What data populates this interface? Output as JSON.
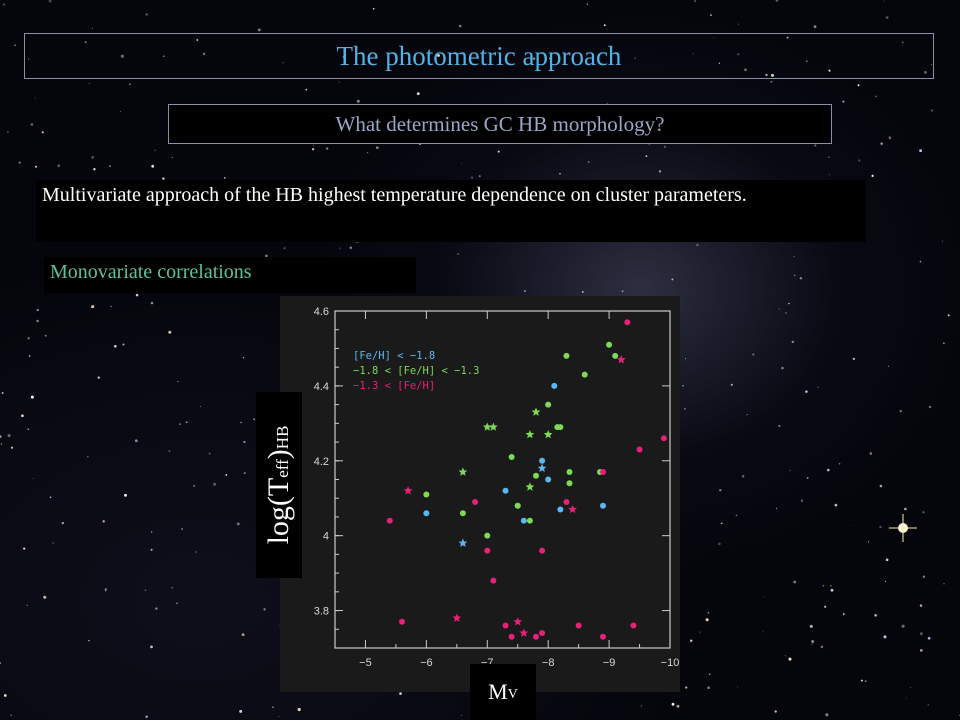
{
  "slide": {
    "title": "The photometric approach",
    "subtitle": "What determines GC HB morphology?",
    "body": "Multivariate approach of the HB highest temperature dependence on cluster parameters.",
    "section": "Monovariate correlations"
  },
  "axis_labels": {
    "y_main": "log(T",
    "y_sub": "eff",
    "y_close": ")",
    "y_sub2": "HB",
    "x_main": "M",
    "x_sub": "V"
  },
  "colors": {
    "low": "#5ab8f0",
    "mid": "#7ed957",
    "high": "#e8207a"
  },
  "chart_data": {
    "type": "scatter",
    "xlim": [
      -4.5,
      -10
    ],
    "ylim": [
      3.7,
      4.6
    ],
    "x_ticks": [
      -5,
      -6,
      -7,
      -8,
      -9,
      -10
    ],
    "y_ticks": [
      3.8,
      4,
      4.2,
      4.4,
      4.6
    ],
    "x_tick_labels": [
      "−5",
      "−6",
      "−7",
      "−8",
      "−9",
      "−10"
    ],
    "y_tick_labels": [
      "3.8",
      "4",
      "4.2",
      "4.4",
      "4.6"
    ],
    "legend": [
      {
        "label": "[Fe/H] < −1.8",
        "color": "#5ab8f0"
      },
      {
        "label": "−1.8 < [Fe/H] < −1.3",
        "color": "#7ed957"
      },
      {
        "label": "−1.3 < [Fe/H]",
        "color": "#e8207a"
      }
    ],
    "legend_position": "top-left",
    "series": [
      {
        "name": "[Fe/H] < −1.8",
        "color": "#5ab8f0",
        "points": [
          {
            "x": -6.0,
            "y": 4.06,
            "m": "o"
          },
          {
            "x": -6.6,
            "y": 3.98,
            "m": "*"
          },
          {
            "x": -7.3,
            "y": 4.12,
            "m": "o"
          },
          {
            "x": -7.6,
            "y": 4.04,
            "m": "o"
          },
          {
            "x": -7.5,
            "y": 4.08,
            "m": "o"
          },
          {
            "x": -7.9,
            "y": 4.2,
            "m": "o"
          },
          {
            "x": -7.9,
            "y": 4.18,
            "m": "*"
          },
          {
            "x": -8.0,
            "y": 4.15,
            "m": "o"
          },
          {
            "x": -8.2,
            "y": 4.07,
            "m": "o"
          },
          {
            "x": -8.9,
            "y": 4.08,
            "m": "o"
          },
          {
            "x": -8.1,
            "y": 4.4,
            "m": "o"
          }
        ]
      },
      {
        "name": "−1.8 < [Fe/H] < −1.3",
        "color": "#7ed957",
        "points": [
          {
            "x": -6.0,
            "y": 4.11,
            "m": "o"
          },
          {
            "x": -6.6,
            "y": 4.06,
            "m": "o"
          },
          {
            "x": -6.6,
            "y": 4.17,
            "m": "*"
          },
          {
            "x": -7.0,
            "y": 4.29,
            "m": "*"
          },
          {
            "x": -7.1,
            "y": 4.29,
            "m": "*"
          },
          {
            "x": -7.0,
            "y": 4.0,
            "m": "o"
          },
          {
            "x": -7.4,
            "y": 4.21,
            "m": "o"
          },
          {
            "x": -7.5,
            "y": 4.08,
            "m": "o"
          },
          {
            "x": -7.7,
            "y": 4.27,
            "m": "*"
          },
          {
            "x": -7.8,
            "y": 4.33,
            "m": "*"
          },
          {
            "x": -7.7,
            "y": 4.04,
            "m": "o"
          },
          {
            "x": -7.7,
            "y": 4.13,
            "m": "*"
          },
          {
            "x": -7.8,
            "y": 4.16,
            "m": "o"
          },
          {
            "x": -8.0,
            "y": 4.35,
            "m": "o"
          },
          {
            "x": -8.0,
            "y": 4.27,
            "m": "*"
          },
          {
            "x": -8.15,
            "y": 4.29,
            "m": "o"
          },
          {
            "x": -8.2,
            "y": 4.29,
            "m": "o"
          },
          {
            "x": -8.3,
            "y": 4.48,
            "m": "o"
          },
          {
            "x": -8.35,
            "y": 4.17,
            "m": "o"
          },
          {
            "x": -8.35,
            "y": 4.14,
            "m": "o"
          },
          {
            "x": -8.6,
            "y": 4.43,
            "m": "o"
          },
          {
            "x": -8.85,
            "y": 4.17,
            "m": "o"
          },
          {
            "x": -9.0,
            "y": 4.51,
            "m": "o"
          },
          {
            "x": -9.1,
            "y": 4.48,
            "m": "o"
          }
        ]
      },
      {
        "name": "−1.3 < [Fe/H]",
        "color": "#e8207a",
        "points": [
          {
            "x": -5.4,
            "y": 4.04,
            "m": "o"
          },
          {
            "x": -5.7,
            "y": 4.12,
            "m": "*"
          },
          {
            "x": -5.6,
            "y": 3.77,
            "m": "o"
          },
          {
            "x": -6.5,
            "y": 3.78,
            "m": "*"
          },
          {
            "x": -6.8,
            "y": 4.09,
            "m": "o"
          },
          {
            "x": -7.0,
            "y": 3.96,
            "m": "o"
          },
          {
            "x": -7.1,
            "y": 3.88,
            "m": "o"
          },
          {
            "x": -7.3,
            "y": 3.76,
            "m": "o"
          },
          {
            "x": -7.4,
            "y": 3.73,
            "m": "o"
          },
          {
            "x": -7.5,
            "y": 3.77,
            "m": "*"
          },
          {
            "x": -7.6,
            "y": 3.74,
            "m": "*"
          },
          {
            "x": -7.8,
            "y": 3.73,
            "m": "o"
          },
          {
            "x": -7.9,
            "y": 3.74,
            "m": "o"
          },
          {
            "x": -7.9,
            "y": 3.96,
            "m": "o"
          },
          {
            "x": -8.3,
            "y": 4.09,
            "m": "o"
          },
          {
            "x": -8.4,
            "y": 4.07,
            "m": "*"
          },
          {
            "x": -8.5,
            "y": 3.76,
            "m": "o"
          },
          {
            "x": -8.9,
            "y": 4.17,
            "m": "o"
          },
          {
            "x": -8.9,
            "y": 3.73,
            "m": "o"
          },
          {
            "x": -9.2,
            "y": 4.47,
            "m": "*"
          },
          {
            "x": -9.3,
            "y": 4.57,
            "m": "o"
          },
          {
            "x": -9.4,
            "y": 3.76,
            "m": "o"
          },
          {
            "x": -9.5,
            "y": 4.23,
            "m": "o"
          },
          {
            "x": -9.9,
            "y": 4.26,
            "m": "o"
          }
        ]
      }
    ]
  }
}
